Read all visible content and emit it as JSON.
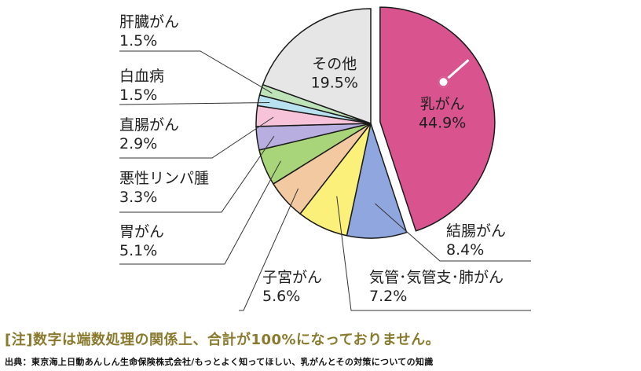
{
  "chart_data": {
    "type": "pie",
    "title": "",
    "slices": [
      {
        "label": "乳がん",
        "value": 44.9,
        "display": "44.9%",
        "color": "#d9548f"
      },
      {
        "label": "結腸がん",
        "value": 8.4,
        "display": "8.4%",
        "color": "#8fa6de"
      },
      {
        "label": "気管･気管支･肺がん",
        "value": 7.2,
        "display": "7.2%",
        "color": "#fbf07a"
      },
      {
        "label": "子宮がん",
        "value": 5.6,
        "display": "5.6%",
        "color": "#f2c9a0"
      },
      {
        "label": "胃がん",
        "value": 5.1,
        "display": "5.1%",
        "color": "#a8d47a"
      },
      {
        "label": "悪性リンパ腫",
        "value": 3.3,
        "display": "3.3%",
        "color": "#b8aee0"
      },
      {
        "label": "直腸がん",
        "value": 2.9,
        "display": "2.9%",
        "color": "#f6c3d8"
      },
      {
        "label": "白血病",
        "value": 1.5,
        "display": "1.5%",
        "color": "#b9e2f0"
      },
      {
        "label": "肝臓がん",
        "value": 1.5,
        "display": "1.5%",
        "color": "#bfe3b8"
      },
      {
        "label": "その他",
        "value": 19.5,
        "display": "19.5%",
        "color": "#e6e6e6"
      }
    ],
    "exploded": "乳がん"
  },
  "note": "[注]数字は端数処理の関係上、合計が100%になっておりません。",
  "source": "出典：東京海上日動あんしん生命保険株式会社/もっとよく知ってほしい、乳がんとその対策についての知識"
}
